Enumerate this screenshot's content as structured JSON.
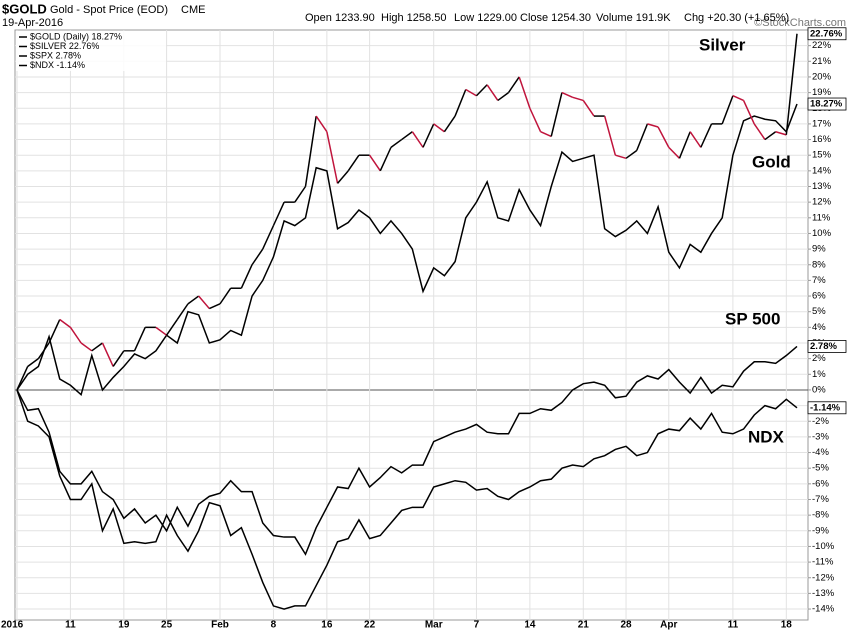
{
  "header": {
    "symbol": "$GOLD",
    "description": "Gold - Spot Price (EOD)",
    "exchange": "CME",
    "date": "19-Apr-2016",
    "quote": [
      "Open 1233.90",
      "High 1258.50",
      "Low 1229.00",
      "Close 1254.30",
      "Volume 191.9K",
      "Chg +20.30 (+1.65%)"
    ],
    "watermark": "©StockCharts.com"
  },
  "chart_data": {
    "type": "line",
    "categories": [
      "2016",
      null,
      null,
      null,
      null,
      "11",
      null,
      null,
      null,
      null,
      "19",
      null,
      null,
      null,
      "25",
      null,
      null,
      null,
      null,
      "Feb",
      null,
      null,
      null,
      null,
      "8",
      null,
      null,
      null,
      null,
      "16",
      null,
      null,
      null,
      "22",
      null,
      null,
      null,
      null,
      null,
      "Mar",
      null,
      null,
      null,
      "7",
      null,
      null,
      null,
      null,
      "14",
      null,
      null,
      null,
      null,
      "21",
      null,
      null,
      null,
      "28",
      null,
      null,
      null,
      "Apr",
      null,
      null,
      null,
      null,
      null,
      "11",
      null,
      null,
      null,
      null,
      "18",
      null
    ],
    "series": [
      {
        "name": "$GOLD (Daily) 18.27%",
        "color": "#000000",
        "last_label": "18.27%",
        "values": [
          0,
          1,
          1.5,
          3.4,
          0.7,
          0.3,
          -0.3,
          2.2,
          0,
          0.8,
          1.5,
          2.3,
          2,
          2.5,
          3.5,
          3,
          5,
          4.8,
          3,
          3.2,
          3.8,
          3.5,
          6,
          7,
          8.5,
          10.8,
          10.5,
          11,
          14.2,
          14,
          10.3,
          10.7,
          11.5,
          11,
          10,
          10.8,
          10,
          9,
          6.3,
          7.8,
          7.3,
          8.2,
          11,
          12,
          13.3,
          11,
          10.8,
          12.8,
          11.5,
          10.5,
          13,
          15.2,
          14.6,
          14.8,
          15,
          10.3,
          9.8,
          10.2,
          10.8,
          10,
          11.7,
          8.8,
          7.8,
          9.3,
          8.8,
          10,
          11,
          15,
          17.2,
          17.5,
          17.3,
          17.2,
          16.5,
          18.27
        ]
      },
      {
        "name": "$SILVER 22.76%",
        "color": "#000000",
        "down_color": "#c0143c",
        "last_label": "22.76%",
        "values": [
          0,
          1.5,
          2,
          3,
          4.5,
          4,
          3,
          2.5,
          3,
          1.5,
          2.5,
          2.5,
          4,
          4,
          3.5,
          4.5,
          5.5,
          6,
          5.2,
          5.5,
          6.5,
          6.5,
          8,
          9,
          10.5,
          12,
          12,
          13,
          17.5,
          16.5,
          13.2,
          14,
          15,
          15,
          14,
          15.5,
          16,
          16.5,
          15.5,
          17,
          16.5,
          17.5,
          19.2,
          18.8,
          19.5,
          18.5,
          19,
          20,
          18,
          16.5,
          16.2,
          19,
          18.7,
          18.5,
          17.5,
          17.5,
          15,
          14.8,
          15.3,
          17,
          16.8,
          15.5,
          14.8,
          16.5,
          15.5,
          17,
          17,
          18.8,
          18.5,
          17,
          16,
          16.5,
          16.3,
          22.76
        ]
      },
      {
        "name": "$SPX 2.78%",
        "color": "#000000",
        "last_label": "2.78%",
        "values": [
          0,
          -1.3,
          -1.2,
          -2.7,
          -5.2,
          -6,
          -6,
          -5.2,
          -6.5,
          -7,
          -8.2,
          -7.6,
          -8.5,
          -8,
          -9,
          -7.5,
          -8.7,
          -7.3,
          -6.8,
          -6.6,
          -5.8,
          -6.5,
          -6.5,
          -8.5,
          -9.3,
          -9.4,
          -9.4,
          -10.5,
          -8.8,
          -7.5,
          -6.2,
          -6.3,
          -5,
          -6.2,
          -5.6,
          -4.9,
          -5.3,
          -4.8,
          -4.8,
          -3.3,
          -3,
          -2.7,
          -2.5,
          -2.2,
          -2.7,
          -2.8,
          -2.8,
          -1.5,
          -1.5,
          -1.2,
          -1.3,
          -0.8,
          0,
          0.4,
          0.5,
          0.3,
          -0.5,
          -0.4,
          0.5,
          0.9,
          0.7,
          1.3,
          0.5,
          -0.2,
          0.8,
          -0.2,
          0.3,
          0.2,
          1.2,
          1.8,
          1.8,
          1.7,
          2.2,
          2.78
        ]
      },
      {
        "name": "$NDX -1.14%",
        "color": "#000000",
        "last_label": "-1.14%",
        "values": [
          0,
          -2,
          -2.3,
          -3,
          -5.5,
          -7,
          -7,
          -6,
          -9,
          -7.6,
          -9.8,
          -9.7,
          -9.8,
          -9.7,
          -8,
          -9.3,
          -10.3,
          -9,
          -7.2,
          -7.4,
          -9.3,
          -8.8,
          -10.5,
          -12.3,
          -13.8,
          -14,
          -13.8,
          -13.8,
          -12.5,
          -11.2,
          -9.7,
          -9.5,
          -8.3,
          -9.5,
          -9.3,
          -8.5,
          -7.7,
          -7.5,
          -7.5,
          -6.2,
          -6,
          -5.8,
          -5.9,
          -6.4,
          -6.3,
          -6.8,
          -7,
          -6.5,
          -6.2,
          -5.8,
          -5.7,
          -5,
          -4.8,
          -4.9,
          -4.4,
          -4.2,
          -3.8,
          -3.6,
          -4.2,
          -4,
          -2.8,
          -2.5,
          -2.6,
          -1.8,
          -2.5,
          -1.5,
          -2.7,
          -2.8,
          -2.5,
          -1.6,
          -1.0,
          -1.2,
          -0.6,
          -1.14
        ]
      }
    ],
    "annotations": [
      "Silver",
      "Gold",
      "SP 500",
      "NDX"
    ],
    "ylim": [
      -14.7,
      23.0
    ],
    "yticks": [
      {
        "value": -14,
        "label": "-14%"
      },
      {
        "value": -13,
        "label": "-13%"
      },
      {
        "value": -12,
        "label": "-12%"
      },
      {
        "value": -11,
        "label": "-11%"
      },
      {
        "value": -10,
        "label": "-10%"
      },
      {
        "value": -9,
        "label": "-9%"
      },
      {
        "value": -8,
        "label": "-8%"
      },
      {
        "value": -7,
        "label": "-7%"
      },
      {
        "value": -6,
        "label": "-6%"
      },
      {
        "value": -5,
        "label": "-5%"
      },
      {
        "value": -4,
        "label": "-4%"
      },
      {
        "value": -3,
        "label": "-3%"
      },
      {
        "value": -2,
        "label": "-2%"
      },
      {
        "value": -1,
        "label": "-1%"
      },
      {
        "value": 0,
        "label": "0%"
      },
      {
        "value": 1,
        "label": "1%"
      },
      {
        "value": 2,
        "label": "2%"
      },
      {
        "value": 3,
        "label": "3%"
      },
      {
        "value": 4,
        "label": "4%"
      },
      {
        "value": 5,
        "label": "5%"
      },
      {
        "value": 6,
        "label": "6%"
      },
      {
        "value": 7,
        "label": "7%"
      },
      {
        "value": 8,
        "label": "8%"
      },
      {
        "value": 9,
        "label": "9%"
      },
      {
        "value": 10,
        "label": "10%"
      },
      {
        "value": 11,
        "label": "11%"
      },
      {
        "value": 12,
        "label": "12%"
      },
      {
        "value": 13,
        "label": "13%"
      },
      {
        "value": 14,
        "label": "14%"
      },
      {
        "value": 15,
        "label": "15%"
      },
      {
        "value": 16,
        "label": "16%"
      },
      {
        "value": 17,
        "label": "17%"
      },
      {
        "value": 18,
        "label": "18%"
      },
      {
        "value": 19,
        "label": "19%"
      },
      {
        "value": 20,
        "label": "20%"
      },
      {
        "value": 21,
        "label": "21%"
      },
      {
        "value": 22,
        "label": "22%"
      }
    ],
    "grid": true
  }
}
